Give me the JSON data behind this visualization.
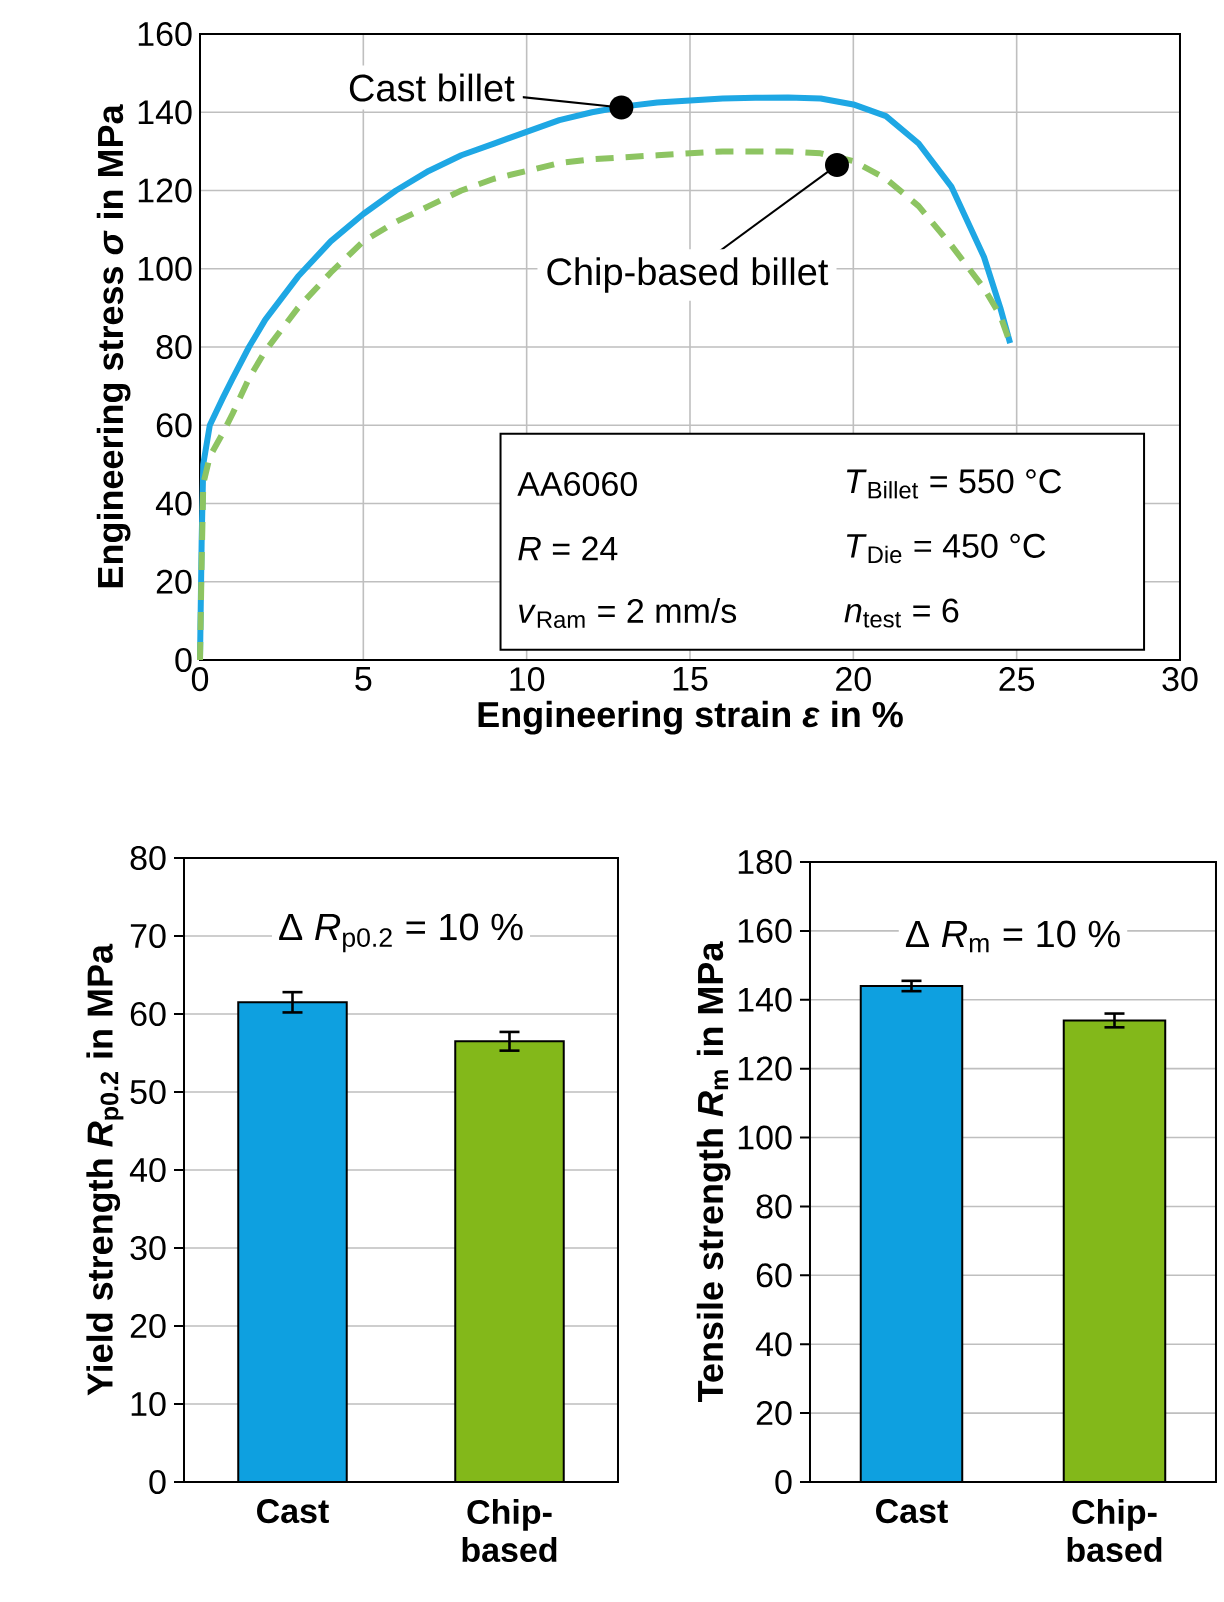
{
  "chart_data": [
    {
      "type": "line",
      "xlabel": "Engineering strain *ε* in %",
      "ylabel": "Engineering stress *σ* in MPa",
      "xlim": [
        0,
        30
      ],
      "ylim": [
        0,
        160
      ],
      "xticks": [
        0,
        5,
        10,
        15,
        20,
        25,
        30
      ],
      "yticks": [
        0,
        20,
        40,
        60,
        80,
        100,
        120,
        140,
        160
      ],
      "grid": true,
      "marker": "none",
      "series": [
        {
          "color": "#1ea7e4",
          "line_style": "solid",
          "x": [
            0,
            0.05,
            0.1,
            0.3,
            0.7,
            1,
            1.5,
            2,
            3,
            4,
            5,
            6,
            7,
            8,
            9,
            10,
            11,
            12,
            13,
            14,
            15,
            16,
            17,
            18,
            19,
            20,
            21,
            22,
            23,
            24,
            24.5,
            24.8
          ],
          "values": [
            0,
            30,
            50,
            60,
            67,
            72,
            80,
            87,
            98,
            107,
            114,
            120,
            125,
            129,
            132,
            135,
            138,
            140,
            141.5,
            142.5,
            143,
            143.5,
            143.7,
            143.8,
            143.5,
            142,
            139,
            132,
            121,
            103,
            90,
            81
          ]
        },
        {
          "color": "#8dc462",
          "line_style": "dashed",
          "x": [
            0,
            0.05,
            0.1,
            0.3,
            0.7,
            1,
            1.5,
            2,
            3,
            4,
            5,
            6,
            7,
            8,
            9,
            10,
            11,
            12,
            13,
            14,
            15,
            16,
            17,
            18,
            19,
            20,
            21,
            22,
            23,
            24,
            24.5,
            24.8
          ],
          "values": [
            0,
            25,
            45,
            52,
            58,
            63,
            72,
            79,
            90,
            99,
            107,
            112,
            116,
            120,
            123,
            125,
            127,
            128,
            128.5,
            129,
            129.5,
            130,
            130,
            130,
            129.5,
            127.5,
            123,
            116,
            106,
            95,
            88,
            81
          ]
        }
      ],
      "annotations": [
        {
          "text": "Cast billet",
          "x": 12.9,
          "y": 141.2
        },
        {
          "text": "Chip-based billet",
          "x": 19.5,
          "y": 126.5
        },
        "AA6060",
        "*R* = 24",
        "*v*$_{Ram}$ = 2 mm/s",
        "*T*$_{Billet}$ = 550 °C",
        "*T*$_{Die}$ = 450 °C",
        "*n*$_{test}$ = 6"
      ]
    },
    {
      "type": "bar",
      "categories": [
        "Cast",
        "Chip-based"
      ],
      "values": [
        61.5,
        56.5
      ],
      "errors": [
        1.3,
        1.2
      ],
      "colors": [
        "#0ea0e0",
        "#83b81a"
      ],
      "ylabel": "Yield strength *R*$_{p0.2}$ in MPa",
      "ylim": [
        0,
        80
      ],
      "yticks": [
        0,
        10,
        20,
        30,
        40,
        50,
        60,
        70,
        80
      ],
      "grid": "y",
      "annotations": [
        "Δ *R*$_{p0.2}$ = 10 %"
      ]
    },
    {
      "type": "bar",
      "categories": [
        "Cast",
        "Chip-based"
      ],
      "values": [
        144,
        134
      ],
      "errors": [
        1.5,
        2
      ],
      "colors": [
        "#0ea0e0",
        "#83b81a"
      ],
      "ylabel": "Tensile strength *R*$_{m}$ in MPa",
      "ylim": [
        0,
        180
      ],
      "yticks": [
        0,
        20,
        40,
        60,
        80,
        100,
        120,
        140,
        160,
        180
      ],
      "grid": "y",
      "annotations": [
        "Δ *R*$_{m}$ = 10 %"
      ]
    }
  ]
}
